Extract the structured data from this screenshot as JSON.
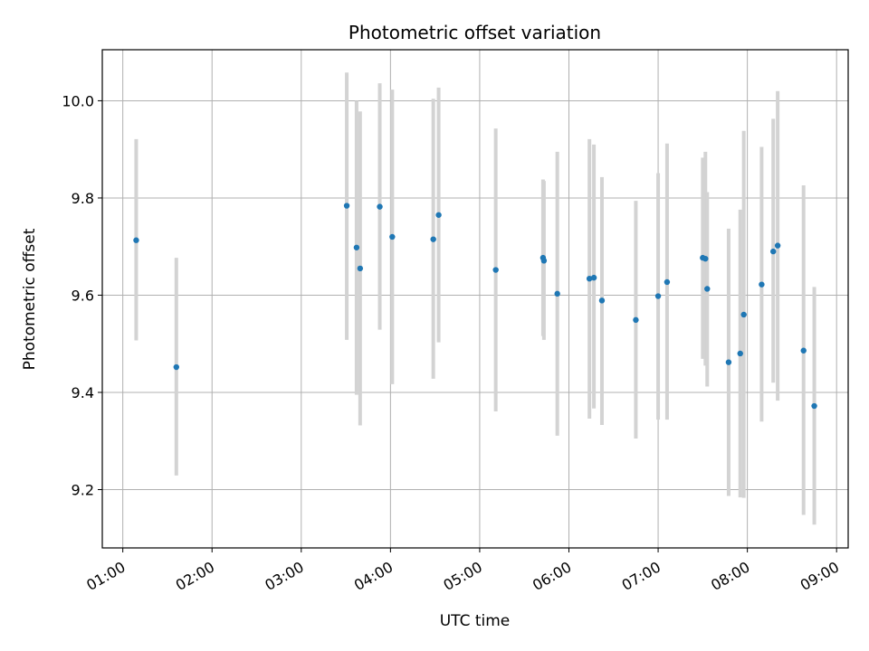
{
  "chart_data": {
    "type": "scatter",
    "title": "Photometric offset variation",
    "xlabel": "UTC time",
    "ylabel": "Photometric offset",
    "x_unit": "hours",
    "xlim": [
      0.77,
      9.13
    ],
    "ylim": [
      9.08,
      10.105
    ],
    "x_ticks": [
      1,
      2,
      3,
      4,
      5,
      6,
      7,
      8,
      9
    ],
    "x_tick_labels": [
      "01:00",
      "02:00",
      "03:00",
      "04:00",
      "05:00",
      "06:00",
      "07:00",
      "08:00",
      "09:00"
    ],
    "y_ticks": [
      9.2,
      9.4,
      9.6,
      9.8,
      10.0
    ],
    "y_tick_labels": [
      "9.2",
      "9.4",
      "9.6",
      "9.8",
      "10.0"
    ],
    "grid": true,
    "point_color": "#1f77b4",
    "errorbar_color": "#d3d3d3",
    "points": [
      {
        "x": 1.15,
        "y": 9.713,
        "lo": 9.507,
        "hi": 9.921
      },
      {
        "x": 1.6,
        "y": 9.452,
        "lo": 9.229,
        "hi": 9.677
      },
      {
        "x": 3.51,
        "y": 9.784,
        "lo": 9.508,
        "hi": 10.058
      },
      {
        "x": 3.62,
        "y": 9.698,
        "lo": 9.395,
        "hi": 10.0
      },
      {
        "x": 3.66,
        "y": 9.655,
        "lo": 9.332,
        "hi": 9.978
      },
      {
        "x": 3.88,
        "y": 9.782,
        "lo": 9.529,
        "hi": 10.036
      },
      {
        "x": 4.02,
        "y": 9.72,
        "lo": 9.417,
        "hi": 10.023
      },
      {
        "x": 4.48,
        "y": 9.715,
        "lo": 9.428,
        "hi": 10.004
      },
      {
        "x": 4.54,
        "y": 9.765,
        "lo": 9.503,
        "hi": 10.027
      },
      {
        "x": 5.18,
        "y": 9.652,
        "lo": 9.361,
        "hi": 9.943
      },
      {
        "x": 5.71,
        "y": 9.677,
        "lo": 9.516,
        "hi": 9.838
      },
      {
        "x": 5.72,
        "y": 9.671,
        "lo": 9.508,
        "hi": 9.835
      },
      {
        "x": 5.87,
        "y": 9.603,
        "lo": 9.311,
        "hi": 9.895
      },
      {
        "x": 6.23,
        "y": 9.634,
        "lo": 9.346,
        "hi": 9.921
      },
      {
        "x": 6.28,
        "y": 9.636,
        "lo": 9.367,
        "hi": 9.91
      },
      {
        "x": 6.37,
        "y": 9.589,
        "lo": 9.333,
        "hi": 9.843
      },
      {
        "x": 6.75,
        "y": 9.549,
        "lo": 9.305,
        "hi": 9.794
      },
      {
        "x": 7.0,
        "y": 9.598,
        "lo": 9.344,
        "hi": 9.851
      },
      {
        "x": 7.1,
        "y": 9.627,
        "lo": 9.344,
        "hi": 9.912
      },
      {
        "x": 7.5,
        "y": 9.677,
        "lo": 9.469,
        "hi": 9.883
      },
      {
        "x": 7.53,
        "y": 9.675,
        "lo": 9.455,
        "hi": 9.895
      },
      {
        "x": 7.55,
        "y": 9.613,
        "lo": 9.412,
        "hi": 9.812
      },
      {
        "x": 7.79,
        "y": 9.462,
        "lo": 9.187,
        "hi": 9.737
      },
      {
        "x": 7.92,
        "y": 9.48,
        "lo": 9.184,
        "hi": 9.776
      },
      {
        "x": 7.96,
        "y": 9.56,
        "lo": 9.183,
        "hi": 9.938
      },
      {
        "x": 8.16,
        "y": 9.622,
        "lo": 9.34,
        "hi": 9.905
      },
      {
        "x": 8.29,
        "y": 9.69,
        "lo": 9.42,
        "hi": 9.963
      },
      {
        "x": 8.34,
        "y": 9.702,
        "lo": 9.383,
        "hi": 10.02
      },
      {
        "x": 8.63,
        "y": 9.486,
        "lo": 9.148,
        "hi": 9.826
      },
      {
        "x": 8.75,
        "y": 9.372,
        "lo": 9.128,
        "hi": 9.617
      }
    ]
  }
}
